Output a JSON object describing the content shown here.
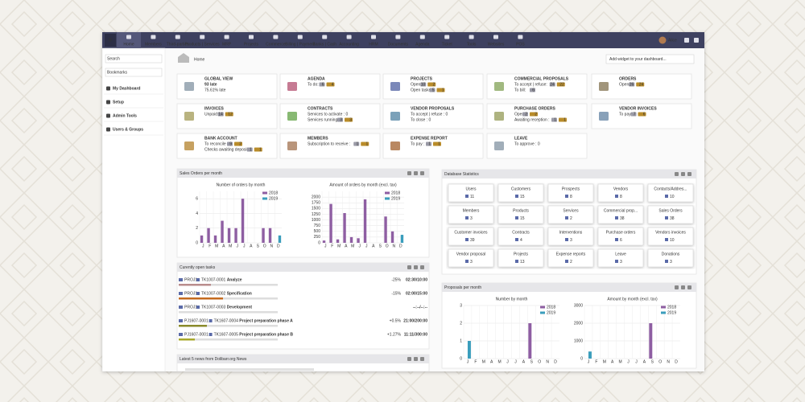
{
  "nav": {
    "logo": "D",
    "items": [
      "Home",
      "Members",
      "Third-parties",
      "Products | Services",
      "MRP",
      "Projects",
      "Commerce",
      "Billing | Payment",
      "Banks | Cash",
      "Accounting",
      "HRM",
      "Documents",
      "Agenda",
      "Ticket",
      "Tools",
      "Websites",
      "POS"
    ],
    "user": "Alice"
  },
  "sidebar": {
    "search": "Search",
    "bookmarks": "Bookmarks",
    "links": [
      "My Dashboard",
      "Setup",
      "Admin Tools",
      "Users & Groups"
    ]
  },
  "breadcrumb": "Home",
  "widget_select": "Add widget to your dashboard...",
  "boxes": [
    {
      "title": "GLOBAL VIEW",
      "lines": [
        {
          "text": "93 late",
          "badges": []
        },
        {
          "text": "75.61% late",
          "badges": []
        }
      ]
    },
    {
      "title": "AGENDA",
      "lines": [
        {
          "text": "To do:",
          "badges": [
            "6",
            "4"
          ]
        }
      ]
    },
    {
      "title": "PROJECTS",
      "lines": [
        {
          "text": "Open:",
          "badges": [
            "10",
            "2"
          ]
        },
        {
          "text": "Open tasks",
          "badges": [
            "5",
            "1"
          ]
        }
      ]
    },
    {
      "title": "COMMERCIAL PROPOSALS",
      "lines": [
        {
          "text": "To accept | refuse:",
          "badges": [
            "24",
            "22"
          ]
        },
        {
          "text": "To bill:",
          "badges": [
            "6"
          ]
        }
      ]
    },
    {
      "title": "ORDERS",
      "lines": [
        {
          "text": "Open:",
          "badges": [
            "26",
            "24"
          ]
        }
      ]
    },
    {
      "title": "INVOICES",
      "lines": [
        {
          "text": "Unpaid:",
          "badges": [
            "14",
            "12"
          ]
        }
      ]
    },
    {
      "title": "CONTRACTS",
      "lines": [
        {
          "text": "Services to activate : 0",
          "badges": []
        },
        {
          "text": "Services running",
          "badges": [
            "3",
            "3"
          ]
        }
      ]
    },
    {
      "title": "VENDOR PROPOSALS",
      "lines": [
        {
          "text": "To accept | refuse : 0",
          "badges": []
        },
        {
          "text": "To close : 0",
          "badges": []
        }
      ]
    },
    {
      "title": "PURCHASE ORDERS",
      "lines": [
        {
          "text": "Open",
          "badges": [
            "2",
            "2"
          ]
        },
        {
          "text": "Awaiting reception :",
          "badges": [
            "1",
            "1"
          ]
        }
      ]
    },
    {
      "title": "VENDOR INVOICES",
      "lines": [
        {
          "text": "To pay",
          "badges": [
            "7",
            "6"
          ]
        }
      ]
    },
    {
      "title": "BANK ACCOUNT",
      "lines": [
        {
          "text": "To reconcile",
          "badges": [
            "9",
            "2"
          ]
        },
        {
          "text": "Checks awaiting deposit",
          "badges": [
            "1",
            "1"
          ]
        }
      ]
    },
    {
      "title": "MEMBERS",
      "lines": [
        {
          "text": "Subscription to receive :",
          "badges": [
            "1",
            "1"
          ]
        }
      ]
    },
    {
      "title": "EXPENSE REPORT",
      "lines": [
        {
          "text": "To pay :",
          "badges": [
            "1",
            "1"
          ]
        }
      ]
    },
    {
      "title": "LEAVE",
      "lines": [
        {
          "text": "To approve : 0",
          "badges": []
        }
      ]
    }
  ],
  "sales": {
    "title": "Sales Orders per month",
    "charts": [
      {
        "type": "bar",
        "title": "Number of orders by month",
        "categories": [
          "J",
          "F",
          "M",
          "A",
          "M",
          "J",
          "J",
          "A",
          "S",
          "O",
          "N",
          "D"
        ],
        "series": [
          {
            "name": "2018",
            "color": "#8e5ea2",
            "values": [
              1,
              2,
              1,
              3,
              2,
              2,
              6,
              0,
              0,
              2,
              2,
              0
            ]
          },
          {
            "name": "2019",
            "color": "#3a9dbc",
            "values": [
              0,
              0,
              0,
              0,
              0,
              0,
              0,
              0,
              0,
              0,
              0,
              1
            ]
          }
        ],
        "ylim": [
          0,
          7
        ],
        "yticks": [
          0,
          2,
          4,
          6
        ]
      },
      {
        "type": "bar",
        "title": "Amount of orders by month (excl. tax)",
        "categories": [
          "J",
          "F",
          "M",
          "A",
          "M",
          "J",
          "J",
          "A",
          "S",
          "O",
          "N",
          "D"
        ],
        "series": [
          {
            "name": "2018",
            "color": "#8e5ea2",
            "values": [
              100,
              1700,
              150,
              1300,
              250,
              200,
              1900,
              0,
              0,
              1150,
              500,
              0
            ]
          },
          {
            "name": "2019",
            "color": "#3a9dbc",
            "values": [
              0,
              0,
              0,
              0,
              0,
              0,
              0,
              0,
              0,
              0,
              0,
              350
            ]
          }
        ],
        "ylim": [
          0,
          2250
        ],
        "yticks": [
          0,
          250,
          500,
          750,
          1000,
          1250,
          1500,
          1750,
          2000
        ]
      }
    ]
  },
  "tasks": {
    "title": "Curently open tasks",
    "rows": [
      {
        "project": "PROJ1",
        "task": "TK1007-0001",
        "label": "Analyze",
        "progress": "-25%",
        "time": "02:30/10:00"
      },
      {
        "project": "PROJ1",
        "task": "TK1007-0002",
        "label": "Specification",
        "progress": "-15%",
        "time": "02:00/15:00"
      },
      {
        "project": "PROJ1",
        "task": "TK1007-0003",
        "label": "Development",
        "time": "--:--/--:--"
      },
      {
        "project": "PJ1607-0001",
        "task": "TK1607-0004",
        "label": "Project preparation phase A",
        "progress": "+0.5%",
        "time": "21:00/200:00"
      },
      {
        "project": "PJ1607-0001",
        "task": "TK1607-0005",
        "label": "Project preparation phase B",
        "progress": "+1.27%",
        "time": "11:11/300:00"
      }
    ]
  },
  "news": {
    "title": "Latest 5 news from Dolibarr.org News"
  },
  "stats": {
    "title": "Database Statistics",
    "tiles": [
      {
        "label": "Users",
        "value": 11
      },
      {
        "label": "Customers",
        "value": 15
      },
      {
        "label": "Prospects",
        "value": 8
      },
      {
        "label": "Vendors",
        "value": 8
      },
      {
        "label": "Contacts/Addres...",
        "value": 10
      },
      {
        "label": "Members",
        "value": 3
      },
      {
        "label": "Products",
        "value": 15
      },
      {
        "label": "Services",
        "value": 2
      },
      {
        "label": "Commercial prop...",
        "value": 38
      },
      {
        "label": "Sales Orders",
        "value": 38
      },
      {
        "label": "Customer invoices",
        "value": 39
      },
      {
        "label": "Contracts",
        "value": 4
      },
      {
        "label": "Interventions",
        "value": 3
      },
      {
        "label": "Purchase orders",
        "value": 6
      },
      {
        "label": "Vendors invoices",
        "value": 10
      },
      {
        "label": "Vendor proposal",
        "value": 3
      },
      {
        "label": "Projects",
        "value": 13
      },
      {
        "label": "Expense reports",
        "value": 2
      },
      {
        "label": "Leave",
        "value": 3
      },
      {
        "label": "Donations",
        "value": 3
      }
    ]
  },
  "proposals": {
    "title": "Proposals per month",
    "charts": [
      {
        "type": "bar",
        "title": "Number by month",
        "categories": [
          "J",
          "F",
          "M",
          "A",
          "M",
          "J",
          "J",
          "A",
          "S",
          "O",
          "N",
          "D"
        ],
        "series": [
          {
            "name": "2018",
            "color": "#8e5ea2",
            "values": [
              0,
              0,
              0,
              0,
              0,
              0,
              0,
              0,
              2,
              0,
              0,
              0
            ]
          },
          {
            "name": "2019",
            "color": "#3a9dbc",
            "values": [
              1,
              0,
              0,
              0,
              0,
              0,
              0,
              0,
              0,
              0,
              0,
              0
            ]
          }
        ],
        "ylim": [
          0,
          3
        ],
        "yticks": [
          0,
          1,
          2,
          3
        ]
      },
      {
        "type": "bar",
        "title": "Amount by month (excl. tax)",
        "categories": [
          "J",
          "F",
          "M",
          "A",
          "M",
          "J",
          "J",
          "A",
          "S",
          "O",
          "N",
          "D"
        ],
        "series": [
          {
            "name": "2018",
            "color": "#8e5ea2",
            "values": [
              0,
              0,
              0,
              0,
              0,
              0,
              0,
              0,
              2000,
              0,
              0,
              0
            ]
          },
          {
            "name": "2019",
            "color": "#3a9dbc",
            "values": [
              400,
              0,
              0,
              0,
              0,
              0,
              0,
              0,
              0,
              0,
              0,
              0
            ]
          }
        ],
        "ylim": [
          0,
          3000
        ],
        "yticks": [
          0,
          1000,
          2000,
          3000
        ]
      }
    ]
  }
}
